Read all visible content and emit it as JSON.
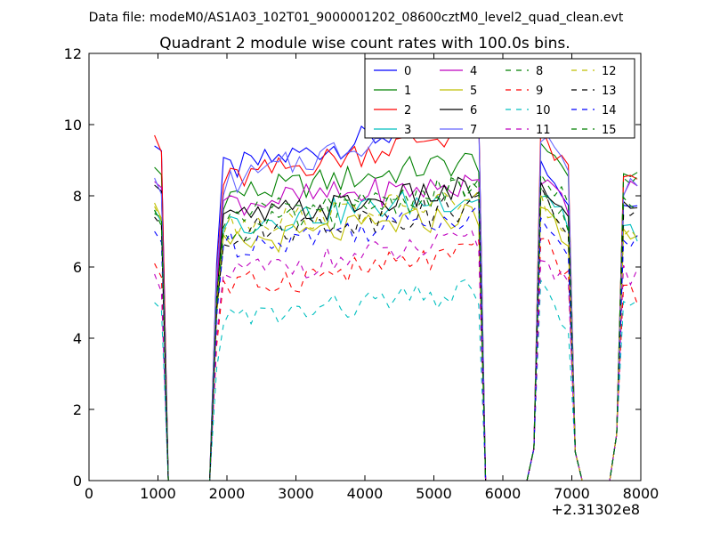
{
  "header": {
    "suptitle": "Data file: modeM0/AS1A03_102T01_9000001202_08600cztM0_level2_quad_clean.evt"
  },
  "chart_data": {
    "type": "line",
    "title": "Quadrant 2 module wise count rates with 100.0s bins.",
    "xlabel": "",
    "ylabel": "",
    "x_offset_label": "+2.31302e8",
    "xlim": [
      0,
      8000
    ],
    "ylim": [
      0,
      12
    ],
    "xticks": [
      "0",
      "1000",
      "2000",
      "3000",
      "4000",
      "5000",
      "6000",
      "7000",
      "8000"
    ],
    "yticks": [
      "0",
      "2",
      "4",
      "6",
      "8",
      "10",
      "12"
    ],
    "grid": false,
    "legend": {
      "placement": "top-right",
      "columns": 4
    },
    "x": [
      950,
      1050,
      1150,
      1250,
      1350,
      1450,
      1550,
      1650,
      1750,
      1850,
      1950,
      2050,
      2150,
      2250,
      2350,
      2450,
      2550,
      2650,
      2750,
      2850,
      2950,
      3050,
      3150,
      3250,
      3350,
      3450,
      3550,
      3650,
      3750,
      3850,
      3950,
      4050,
      4150,
      4250,
      4350,
      4450,
      4550,
      4650,
      4750,
      4850,
      4950,
      5050,
      5150,
      5250,
      5350,
      5450,
      5550,
      5650,
      5750,
      5850,
      5950,
      6050,
      6150,
      6250,
      6350,
      6450,
      6550,
      6650,
      6750,
      6850,
      6950,
      7050,
      7150,
      7250,
      7350,
      7450,
      7550,
      7650,
      7750,
      7850,
      7950
    ],
    "series": [
      {
        "name": "0",
        "color": "#0000ff",
        "dash": "solid",
        "level": 8.7,
        "trend": 1.6,
        "pre": 9.4,
        "seg2": 9.0,
        "seg3": 7.8
      },
      {
        "name": "1",
        "color": "#008000",
        "dash": "solid",
        "level": 8.0,
        "trend": 1.0,
        "pre": 8.8,
        "seg2": 9.6,
        "seg3": 8.6
      },
      {
        "name": "2",
        "color": "#ff0000",
        "dash": "solid",
        "level": 8.4,
        "trend": 1.5,
        "pre": 9.7,
        "seg2": 9.7,
        "seg3": 8.4
      },
      {
        "name": "3",
        "color": "#00bfbf",
        "dash": "solid",
        "level": 7.2,
        "trend": 0.8,
        "pre": 7.6,
        "seg2": 8.2,
        "seg3": 7.0
      },
      {
        "name": "4",
        "color": "#bf00bf",
        "dash": "solid",
        "level": 7.8,
        "trend": 0.5,
        "pre": 8.4,
        "seg2": 8.6,
        "seg3": 8.2
      },
      {
        "name": "5",
        "color": "#bfbf00",
        "dash": "solid",
        "level": 6.6,
        "trend": 0.9,
        "pre": 7.8,
        "seg2": 7.8,
        "seg3": 6.8
      },
      {
        "name": "6",
        "color": "#000000",
        "dash": "solid",
        "level": 7.3,
        "trend": 0.9,
        "pre": 8.3,
        "seg2": 8.4,
        "seg3": 7.8
      },
      {
        "name": "7",
        "color": "#6666ff",
        "dash": "solid",
        "level": 8.3,
        "trend": 2.2,
        "pre": 8.5,
        "seg2": 9.8,
        "seg3": 8.2
      },
      {
        "name": "8",
        "color": "#008000",
        "dash": "dashed",
        "level": 6.9,
        "trend": 1.4,
        "pre": 7.5,
        "seg2": 8.2,
        "seg3": 7.7
      },
      {
        "name": "9",
        "color": "#ff0000",
        "dash": "dashed",
        "level": 5.4,
        "trend": 1.0,
        "pre": 6.1,
        "seg2": 6.8,
        "seg3": 5.2
      },
      {
        "name": "10",
        "color": "#00bfbf",
        "dash": "dashed",
        "level": 4.5,
        "trend": 0.8,
        "pre": 5.0,
        "seg2": 5.4,
        "seg3": 4.8
      },
      {
        "name": "11",
        "color": "#bf00bf",
        "dash": "dashed",
        "level": 5.8,
        "trend": 0.9,
        "pre": 5.8,
        "seg2": 6.4,
        "seg3": 5.8
      },
      {
        "name": "12",
        "color": "#bfbf00",
        "dash": "dashed",
        "level": 7.2,
        "trend": 0.7,
        "pre": 7.7,
        "seg2": 7.8,
        "seg3": 7.0
      },
      {
        "name": "13",
        "color": "#000000",
        "dash": "dashed",
        "level": 6.9,
        "trend": 0.8,
        "pre": 7.4,
        "seg2": 8.0,
        "seg3": 7.6
      },
      {
        "name": "14",
        "color": "#0000ff",
        "dash": "dashed",
        "level": 6.6,
        "trend": 0.9,
        "pre": 7.0,
        "seg2": 7.6,
        "seg3": 6.8
      },
      {
        "name": "15",
        "color": "#008000",
        "dash": "dashed",
        "level": 7.4,
        "trend": 0.8,
        "pre": 7.6,
        "seg2": 8.8,
        "seg3": 8.4
      }
    ]
  }
}
